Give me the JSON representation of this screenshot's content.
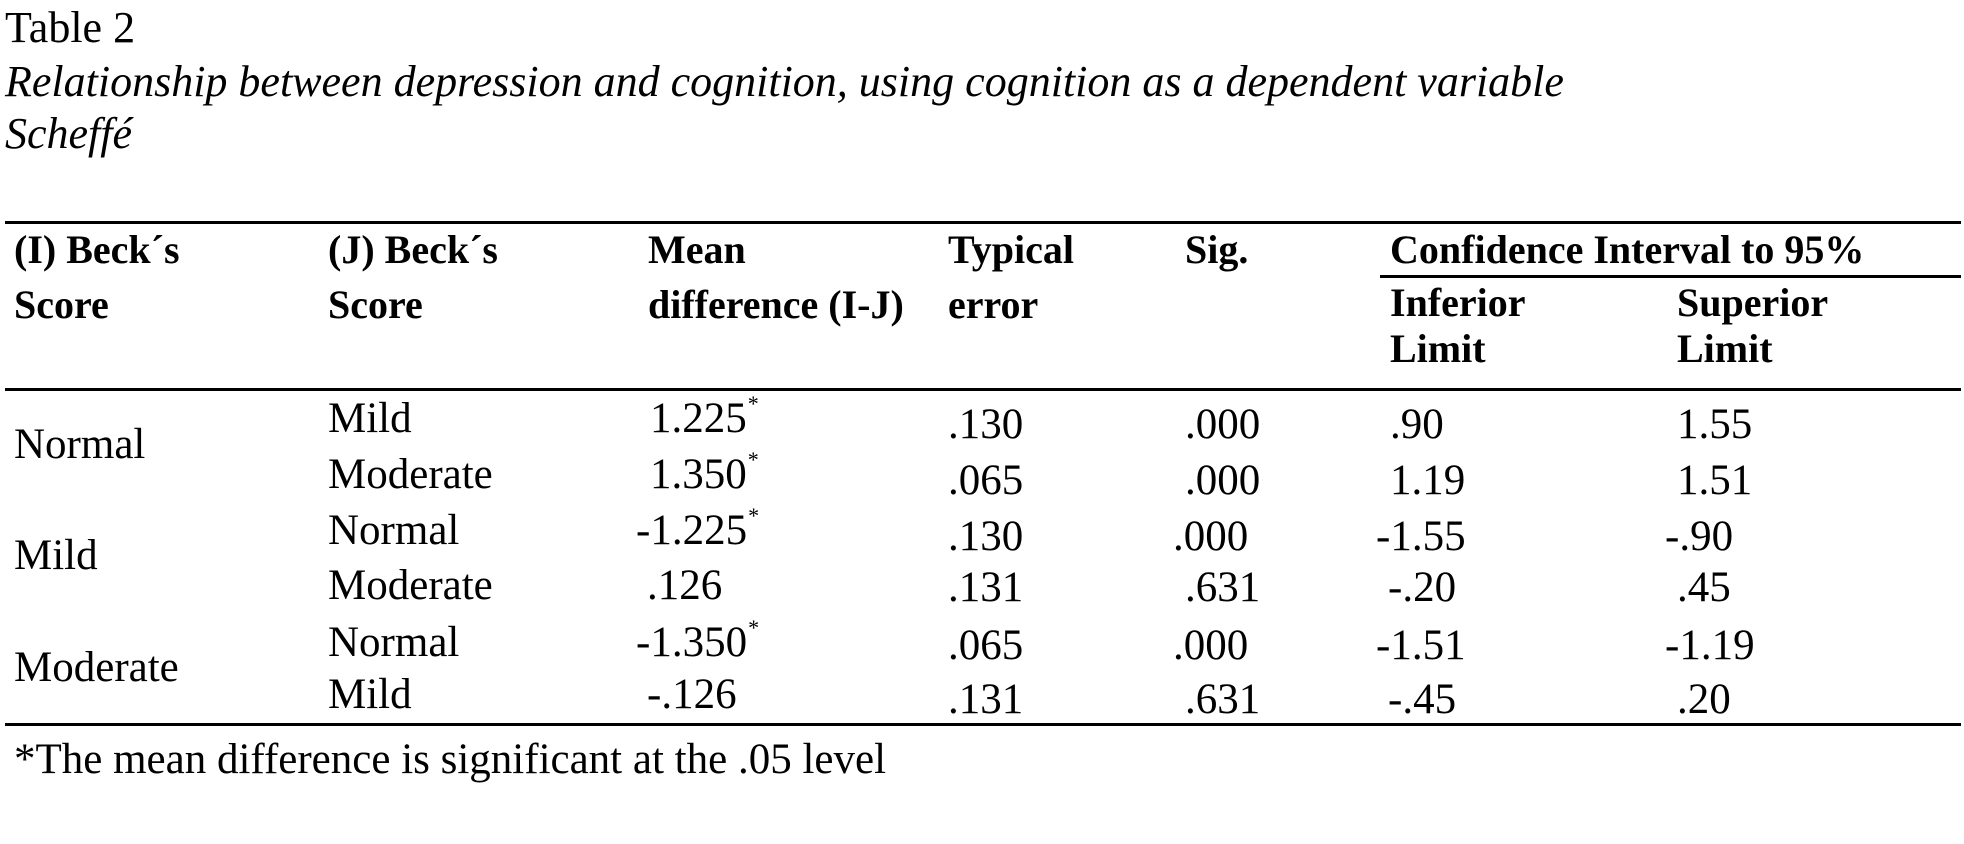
{
  "caption": {
    "number": "Table 2",
    "title": "Relationship between depression and cognition, using cognition as a dependent variable",
    "subtitle": "Scheffé"
  },
  "table": {
    "headers": {
      "i_score": "(I) Beck´s Score",
      "j_score": "(J) Beck´s Score",
      "mean_difference": "Mean difference (I-J)",
      "typical_error": "Typical error",
      "sig": "Sig.",
      "confidence_interval": "Confidence Interval to 95%",
      "inferior_limit": "Inferior Limit",
      "superior_limit": "Superior Limit"
    },
    "groups": [
      {
        "label": "Normal",
        "rows": [
          {
            "j": "Mild",
            "mean_diff": "1.225",
            "mark": "*",
            "error": ".130",
            "sig": ".000",
            "lower": ".90",
            "upper": "1.55"
          },
          {
            "j": "Moderate",
            "mean_diff": "1.350",
            "mark": "*",
            "error": ".065",
            "sig": ".000",
            "lower": "1.19",
            "upper": "1.51"
          }
        ]
      },
      {
        "label": "Mild",
        "rows": [
          {
            "j": "Normal",
            "mean_diff": "-1.225",
            "mark": "*",
            "error": ".130",
            "sig": ".000",
            "lower": "-1.55",
            "upper": "-.90"
          },
          {
            "j": "Moderate",
            "mean_diff": ".126",
            "mark": "",
            "error": ".131",
            "sig": ".631",
            "lower": "-.20",
            "upper": ".45"
          }
        ]
      },
      {
        "label": "Moderate",
        "rows": [
          {
            "j": "Normal",
            "mean_diff": "-1.350",
            "mark": "*",
            "error": ".065",
            "sig": ".000",
            "lower": "-1.51",
            "upper": "-1.19"
          },
          {
            "j": "Mild",
            "mean_diff": "-.126",
            "mark": "",
            "error": ".131",
            "sig": ".631",
            "lower": "-.45",
            "upper": ".20"
          }
        ]
      }
    ],
    "footnote": "*The mean difference is significant at the .05 level"
  }
}
